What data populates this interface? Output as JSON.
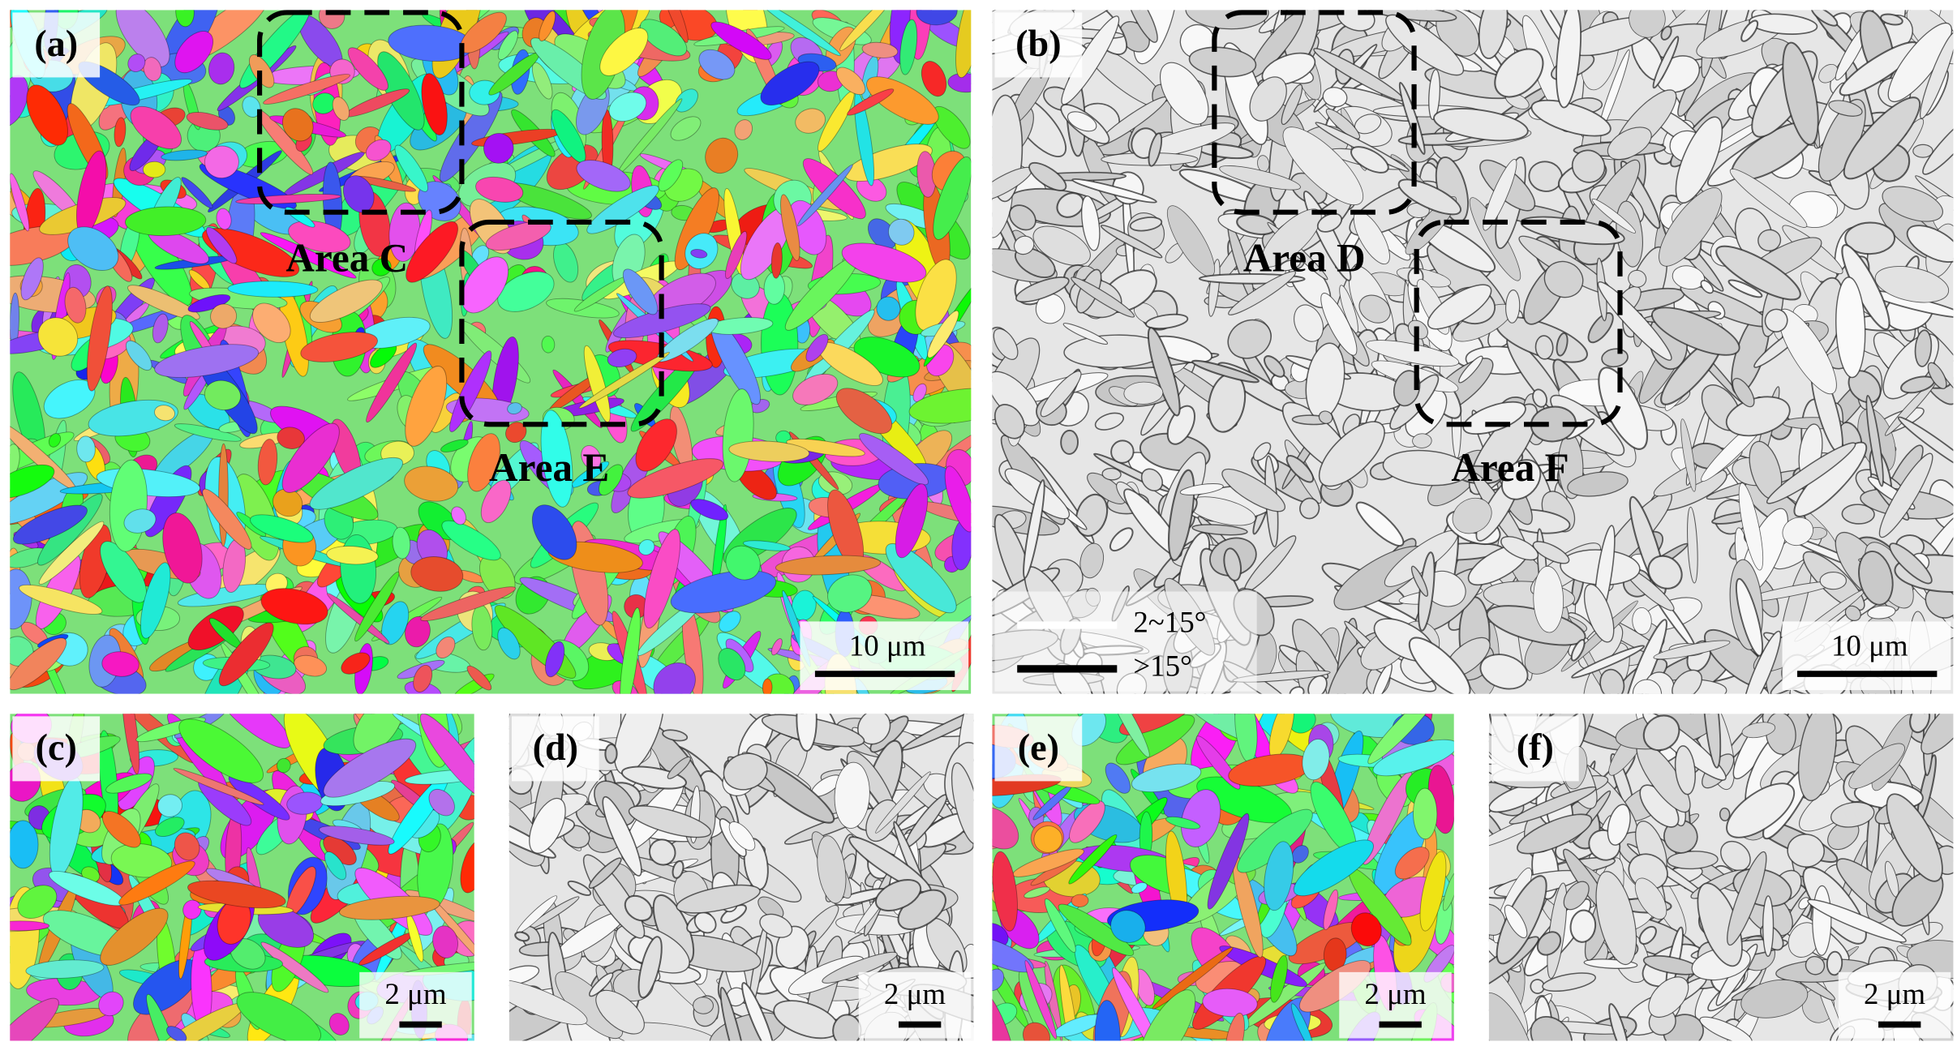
{
  "panels": [
    {
      "label": "(a)",
      "scale_bar": "10 μm",
      "areas": [
        "Area C",
        "Area E"
      ]
    },
    {
      "label": "(b)",
      "scale_bar": "10 μm",
      "areas": [
        "Area D",
        "Area F"
      ],
      "legend": [
        "2~15°",
        ">15°"
      ]
    },
    {
      "label": "(c)",
      "scale_bar": "2 μm"
    },
    {
      "label": "(d)",
      "scale_bar": "2 μm"
    },
    {
      "label": "(e)",
      "scale_bar": "2 μm"
    },
    {
      "label": "(f)",
      "scale_bar": "2 μm"
    }
  ]
}
